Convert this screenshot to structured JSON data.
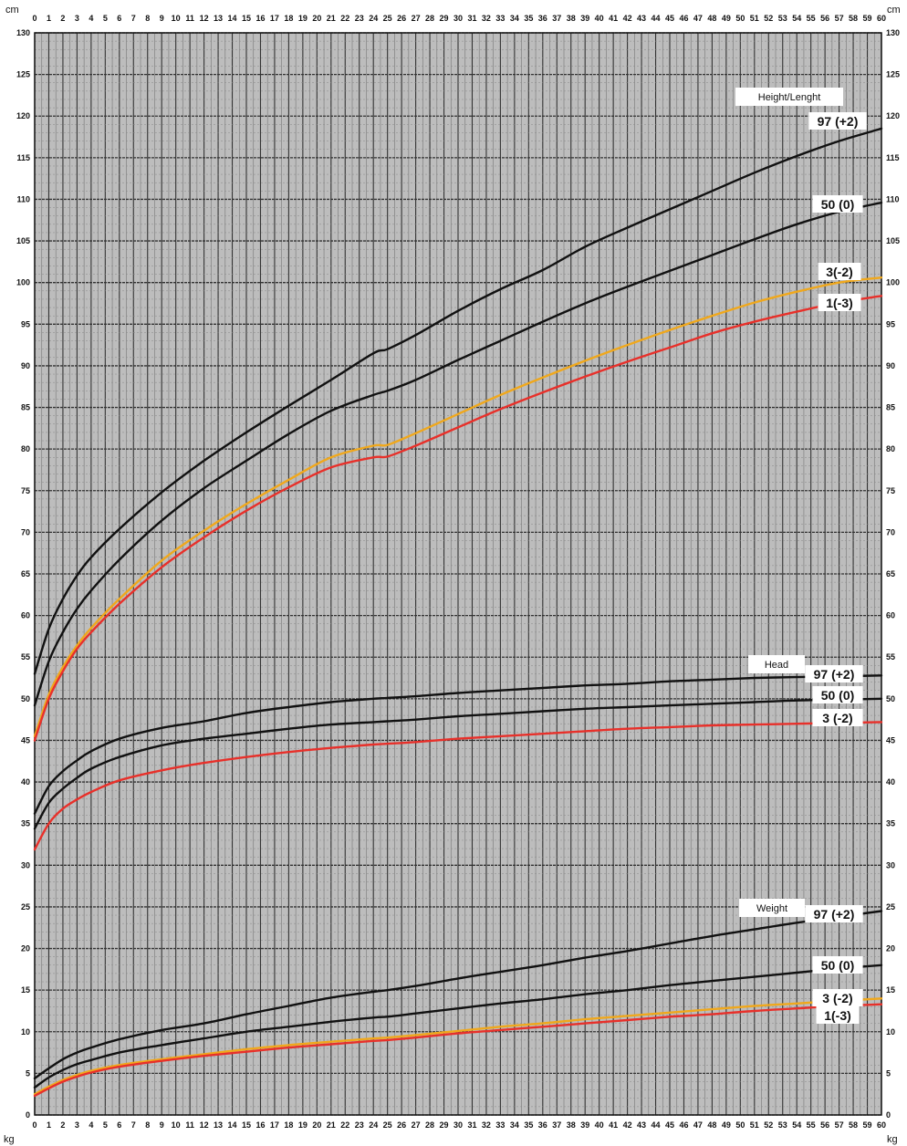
{
  "chart_data": {
    "type": "line",
    "units": {
      "top_left": "cm",
      "top_right": "cm",
      "bottom_left": "kg",
      "bottom_right": "kg"
    },
    "xlim": [
      0,
      60
    ],
    "ylim": [
      0,
      130
    ],
    "x_ticks": [
      0,
      1,
      2,
      3,
      4,
      5,
      6,
      7,
      8,
      9,
      10,
      11,
      12,
      13,
      14,
      15,
      16,
      17,
      18,
      19,
      20,
      21,
      22,
      23,
      24,
      25,
      26,
      27,
      28,
      29,
      30,
      31,
      32,
      33,
      34,
      35,
      36,
      37,
      38,
      39,
      40,
      41,
      42,
      43,
      44,
      45,
      46,
      47,
      48,
      49,
      50,
      51,
      52,
      53,
      54,
      55,
      56,
      57,
      58,
      59,
      60
    ],
    "y_ticks": [
      0,
      5,
      10,
      15,
      20,
      25,
      30,
      35,
      40,
      45,
      50,
      55,
      60,
      65,
      70,
      75,
      80,
      85,
      90,
      95,
      100,
      105,
      110,
      115,
      120,
      125,
      130
    ],
    "grid": true,
    "x": [
      0,
      1,
      2,
      3,
      4,
      6,
      9,
      12,
      15,
      18,
      21,
      24,
      25,
      27,
      30,
      33,
      36,
      39,
      42,
      45,
      48,
      51,
      54,
      57,
      60
    ],
    "groups": [
      {
        "title": "Height/Lenght",
        "series": [
          {
            "name": "97 (+2)",
            "color": "#111111",
            "values": [
              53,
              58.4,
              62,
              64.8,
              67,
              70.4,
              74.8,
              78.6,
              82,
              85.2,
              88.3,
              91.5,
              92,
              93.7,
              96.6,
              99.2,
              101.5,
              104.3,
              106.6,
              108.8,
              111,
              113.2,
              115.2,
              117,
              118.5
            ]
          },
          {
            "name": "50 (0)",
            "color": "#111111",
            "values": [
              49.2,
              54.5,
              58,
              60.8,
              63,
              66.7,
              71.4,
              75.3,
              78.6,
              81.8,
              84.6,
              86.5,
              87,
              88.3,
              90.7,
              93,
              95.3,
              97.5,
              99.5,
              101.4,
              103.3,
              105.2,
              107,
              108.5,
              109.6
            ]
          },
          {
            "name": "3(-2)",
            "color": "#f0a81c",
            "values": [
              45.5,
              50.5,
              53.8,
              56.4,
              58.5,
              62,
              66.6,
              70.2,
              73.4,
              76.3,
              79,
              80.4,
              80.5,
              81.9,
              84.2,
              86.5,
              88.6,
              90.6,
              92.5,
              94.3,
              96,
              97.6,
              98.9,
              100,
              100.6
            ]
          },
          {
            "name": "1(-3)",
            "color": "#e8302a",
            "values": [
              45,
              50,
              53.3,
              56,
              58,
              61.4,
              65.8,
              69.4,
              72.6,
              75.4,
              77.8,
              79,
              79.1,
              80.4,
              82.6,
              84.8,
              86.8,
              88.7,
              90.5,
              92.2,
              93.9,
              95.3,
              96.5,
              97.6,
              98.4
            ]
          }
        ]
      },
      {
        "title": "Head",
        "series": [
          {
            "name": "97 (+2)",
            "color": "#111111",
            "values": [
              36.2,
              39.5,
              41.3,
              42.6,
              43.7,
              45.2,
              46.5,
              47.3,
              48.3,
              49,
              49.6,
              50,
              50.1,
              50.3,
              50.7,
              51,
              51.3,
              51.6,
              51.8,
              52.1,
              52.3,
              52.5,
              52.6,
              52.7,
              52.8
            ]
          },
          {
            "name": "50 (0)",
            "color": "#111111",
            "values": [
              34.4,
              37.5,
              39.2,
              40.5,
              41.6,
              43,
              44.4,
              45.2,
              45.8,
              46.4,
              46.9,
              47.2,
              47.3,
              47.5,
              47.9,
              48.2,
              48.5,
              48.8,
              49,
              49.2,
              49.4,
              49.6,
              49.8,
              49.9,
              50
            ]
          },
          {
            "name": "3 (-2)",
            "color": "#e8302a",
            "values": [
              31.9,
              35,
              36.8,
              37.9,
              38.8,
              40.2,
              41.4,
              42.3,
              43,
              43.6,
              44.1,
              44.5,
              44.6,
              44.8,
              45.2,
              45.5,
              45.8,
              46.1,
              46.4,
              46.6,
              46.8,
              46.9,
              47,
              47.1,
              47.2
            ]
          }
        ]
      },
      {
        "title": "Weight",
        "series": [
          {
            "name": "97 (+2)",
            "color": "#111111",
            "values": [
              4.4,
              5.6,
              6.7,
              7.5,
              8.1,
              9.1,
              10.2,
              11,
              12.1,
              13.1,
              14.1,
              14.8,
              15,
              15.5,
              16.4,
              17.2,
              18,
              18.9,
              19.7,
              20.6,
              21.5,
              22.3,
              23.1,
              23.8,
              24.5
            ]
          },
          {
            "name": "50 (0)",
            "color": "#111111",
            "values": [
              3.3,
              4.5,
              5.4,
              6.1,
              6.6,
              7.5,
              8.4,
              9.2,
              10,
              10.6,
              11.2,
              11.7,
              11.8,
              12.2,
              12.8,
              13.4,
              13.9,
              14.5,
              15,
              15.6,
              16.1,
              16.6,
              17.1,
              17.6,
              18
            ]
          },
          {
            "name": "3 (-2)",
            "color": "#f0a81c",
            "values": [
              2.5,
              3.4,
              4.2,
              4.8,
              5.3,
              6,
              6.7,
              7.3,
              7.9,
              8.4,
              8.8,
              9.2,
              9.3,
              9.6,
              10.1,
              10.6,
              11,
              11.5,
              11.9,
              12.3,
              12.7,
              13.1,
              13.4,
              13.7,
              14
            ]
          },
          {
            "name": "1(-3)",
            "color": "#e8302a",
            "values": [
              2.3,
              3.2,
              4,
              4.6,
              5.1,
              5.8,
              6.5,
              7.1,
              7.6,
              8.1,
              8.5,
              8.9,
              9,
              9.3,
              9.8,
              10.2,
              10.6,
              11,
              11.4,
              11.8,
              12.1,
              12.5,
              12.8,
              13.1,
              13.3
            ]
          }
        ]
      }
    ]
  }
}
